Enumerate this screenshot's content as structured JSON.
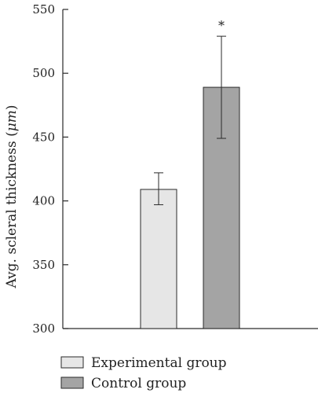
{
  "chart_data": {
    "type": "bar",
    "title": "",
    "xlabel": "",
    "ylabel": "Avg. scleral thickness (μm)",
    "ylabel_parts": {
      "prefix": "Avg. scleral thickness (",
      "unit": "μm",
      "suffix": ")"
    },
    "ylim": [
      300,
      550
    ],
    "yticks": [
      300,
      350,
      400,
      450,
      500,
      550
    ],
    "grid": false,
    "legend_position": "bottom-left",
    "categories": [
      "Experimental group",
      "Control group"
    ],
    "values": [
      409,
      489
    ],
    "error": [
      {
        "low": 397,
        "high": 422
      },
      {
        "low": 449,
        "high": 529
      }
    ],
    "annotations": [
      {
        "category": "Control group",
        "text": "*"
      }
    ],
    "colors": [
      "#e6e6e6",
      "#a4a4a4"
    ],
    "edge_color": "#2a2a2a"
  }
}
